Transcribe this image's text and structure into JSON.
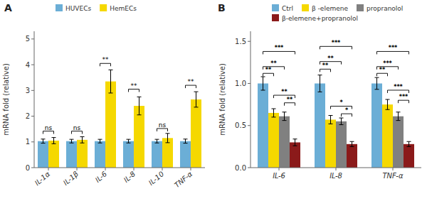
{
  "chart_data": [
    {
      "type": "bar",
      "title": "A",
      "categories": [
        "IL-1α",
        "IL-1β",
        "IL-6",
        "IL-8",
        "IL-10",
        "TNF-α"
      ],
      "series": [
        {
          "name": "HUVECs",
          "color": "#6BAED6",
          "values": [
            1.03,
            1.03,
            1.03,
            1.03,
            1.03,
            1.03
          ],
          "errors": [
            0.08,
            0.07,
            0.07,
            0.07,
            0.07,
            0.08
          ]
        },
        {
          "name": "HemECs",
          "color": "#F5D800",
          "values": [
            1.05,
            1.08,
            3.35,
            2.4,
            1.15,
            2.65
          ],
          "errors": [
            0.12,
            0.12,
            0.45,
            0.35,
            0.18,
            0.3
          ]
        }
      ],
      "y_label": "mRNA fold (relative)",
      "ylim": [
        0,
        5.3
      ],
      "yticks": [
        0,
        1,
        2,
        3,
        4,
        5
      ],
      "grid": false,
      "legend": "top",
      "annotations": [
        {
          "text": "ns",
          "category": "IL-1α",
          "between": [
            "HUVECs",
            "HemECs"
          ],
          "y": 1.42
        },
        {
          "text": "ns",
          "category": "IL-1β",
          "between": [
            "HUVECs",
            "HemECs"
          ],
          "y": 1.42
        },
        {
          "text": "**",
          "category": "IL-6",
          "between": [
            "HUVECs",
            "HemECs"
          ],
          "y": 4.05
        },
        {
          "text": "**",
          "category": "IL-8",
          "between": [
            "HUVECs",
            "HemECs"
          ],
          "y": 3.05
        },
        {
          "text": "ns",
          "category": "IL-10",
          "between": [
            "HUVECs",
            "HemECs"
          ],
          "y": 1.52
        },
        {
          "text": "**",
          "category": "TNF-α",
          "between": [
            "HUVECs",
            "HemECs"
          ],
          "y": 3.2
        }
      ]
    },
    {
      "type": "bar",
      "title": "B",
      "categories": [
        "IL-6",
        "IL-8",
        "TNF-α"
      ],
      "series": [
        {
          "name": "Ctrl",
          "color": "#6BAED6",
          "values": [
            1.0,
            1.0,
            1.0
          ],
          "errors": [
            0.08,
            0.1,
            0.07
          ]
        },
        {
          "name": "β -elemene",
          "color": "#F5D800",
          "values": [
            0.65,
            0.57,
            0.75
          ],
          "errors": [
            0.05,
            0.05,
            0.06
          ]
        },
        {
          "name": "propranolol",
          "color": "#808080",
          "values": [
            0.61,
            0.55,
            0.61
          ],
          "errors": [
            0.05,
            0.04,
            0.05
          ]
        },
        {
          "name": "β-elemene+propranolol",
          "color": "#8B1A1A",
          "values": [
            0.3,
            0.28,
            0.28
          ],
          "errors": [
            0.04,
            0.03,
            0.03
          ]
        }
      ],
      "y_label": "mRNA fold (relative)",
      "ylim": [
        0,
        1.62
      ],
      "yticks": [
        {
          "value": 0.0,
          "label": "0.0"
        },
        0.5,
        {
          "value": 1.0,
          "label": "1.0"
        },
        1.5
      ],
      "grid": false,
      "legend": "top",
      "annotations": [
        {
          "text": "**",
          "category": "IL-6",
          "between": [
            "Ctrl",
            "β -elemene"
          ],
          "y": 1.12
        },
        {
          "text": "**",
          "category": "IL-6",
          "between": [
            "Ctrl",
            "propranolol"
          ],
          "y": 1.2
        },
        {
          "text": "***",
          "category": "IL-6",
          "between": [
            "Ctrl",
            "β-elemene+propranolol"
          ],
          "y": 1.38
        },
        {
          "text": "**",
          "category": "IL-6",
          "between": [
            "β -elemene",
            "β-elemene+propranolol"
          ],
          "y": 0.86
        },
        {
          "text": "**",
          "category": "IL-6",
          "between": [
            "propranolol",
            "β-elemene+propranolol"
          ],
          "y": 0.77
        },
        {
          "text": "**",
          "category": "IL-8",
          "between": [
            "Ctrl",
            "β -elemene"
          ],
          "y": 1.17
        },
        {
          "text": "**",
          "category": "IL-8",
          "between": [
            "Ctrl",
            "propranolol"
          ],
          "y": 1.26
        },
        {
          "text": "***",
          "category": "IL-8",
          "between": [
            "Ctrl",
            "β-elemene+propranolol"
          ],
          "y": 1.44
        },
        {
          "text": "*",
          "category": "IL-8",
          "between": [
            "β -elemene",
            "β-elemene+propranolol"
          ],
          "y": 0.73
        },
        {
          "text": "*",
          "category": "IL-8",
          "between": [
            "propranolol",
            "β-elemene+propranolol"
          ],
          "y": 0.64
        },
        {
          "text": "**",
          "category": "TNF-α",
          "between": [
            "Ctrl",
            "β -elemene"
          ],
          "y": 1.12
        },
        {
          "text": "***",
          "category": "TNF-α",
          "between": [
            "Ctrl",
            "propranolol"
          ],
          "y": 1.2
        },
        {
          "text": "***",
          "category": "TNF-α",
          "between": [
            "Ctrl",
            "β-elemene+propranolol"
          ],
          "y": 1.38
        },
        {
          "text": "***",
          "category": "TNF-α",
          "between": [
            "β -elemene",
            "β-elemene+propranolol"
          ],
          "y": 0.92
        },
        {
          "text": "***",
          "category": "TNF-α",
          "between": [
            "propranolol",
            "β-elemene+propranolol"
          ],
          "y": 0.8
        }
      ]
    }
  ]
}
